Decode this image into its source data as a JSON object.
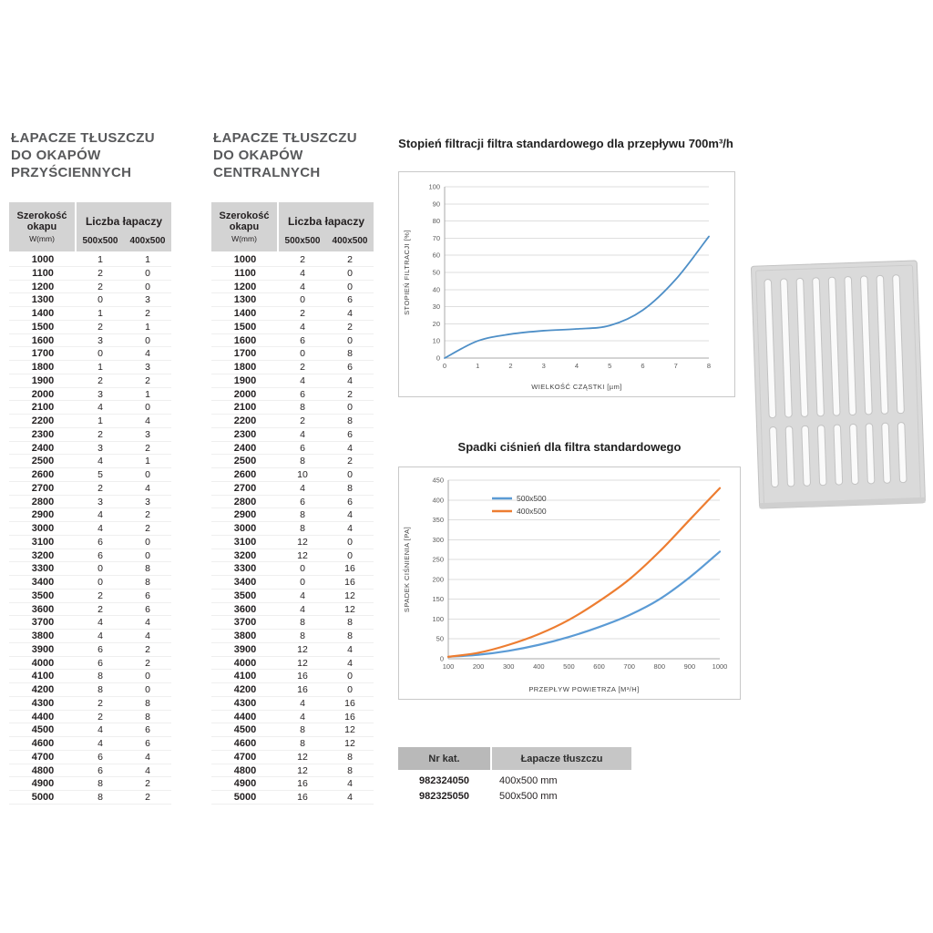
{
  "tables": [
    {
      "title_lines": [
        "ŁAPACZE TŁUSZCZU",
        "DO OKAPÓW",
        "PRZYŚCIENNYCH"
      ],
      "header": {
        "width_label": "Szerokość okapu",
        "width_unit": "W(mm)",
        "group_label": "Liczba łapaczy",
        "columns": [
          "500x500",
          "400x500"
        ]
      },
      "rows": [
        [
          1000,
          1,
          1
        ],
        [
          1100,
          2,
          0
        ],
        [
          1200,
          2,
          0
        ],
        [
          1300,
          0,
          3
        ],
        [
          1400,
          1,
          2
        ],
        [
          1500,
          2,
          1
        ],
        [
          1600,
          3,
          0
        ],
        [
          1700,
          0,
          4
        ],
        [
          1800,
          1,
          3
        ],
        [
          1900,
          2,
          2
        ],
        [
          2000,
          3,
          1
        ],
        [
          2100,
          4,
          0
        ],
        [
          2200,
          1,
          4
        ],
        [
          2300,
          2,
          3
        ],
        [
          2400,
          3,
          2
        ],
        [
          2500,
          4,
          1
        ],
        [
          2600,
          5,
          0
        ],
        [
          2700,
          2,
          4
        ],
        [
          2800,
          3,
          3
        ],
        [
          2900,
          4,
          2
        ],
        [
          3000,
          4,
          2
        ],
        [
          3100,
          6,
          0
        ],
        [
          3200,
          6,
          0
        ],
        [
          3300,
          0,
          8
        ],
        [
          3400,
          0,
          8
        ],
        [
          3500,
          2,
          6
        ],
        [
          3600,
          2,
          6
        ],
        [
          3700,
          4,
          4
        ],
        [
          3800,
          4,
          4
        ],
        [
          3900,
          6,
          2
        ],
        [
          4000,
          6,
          2
        ],
        [
          4100,
          8,
          0
        ],
        [
          4200,
          8,
          0
        ],
        [
          4300,
          2,
          8
        ],
        [
          4400,
          2,
          8
        ],
        [
          4500,
          4,
          6
        ],
        [
          4600,
          4,
          6
        ],
        [
          4700,
          6,
          4
        ],
        [
          4800,
          6,
          4
        ],
        [
          4900,
          8,
          2
        ],
        [
          5000,
          8,
          2
        ]
      ]
    },
    {
      "title_lines": [
        "ŁAPACZE TŁUSZCZU",
        "DO OKAPÓW",
        "CENTRALNYCH"
      ],
      "header": {
        "width_label": "Szerokość okapu",
        "width_unit": "W(mm)",
        "group_label": "Liczba łapaczy",
        "columns": [
          "500x500",
          "400x500"
        ]
      },
      "rows": [
        [
          1000,
          2,
          2
        ],
        [
          1100,
          4,
          0
        ],
        [
          1200,
          4,
          0
        ],
        [
          1300,
          0,
          6
        ],
        [
          1400,
          2,
          4
        ],
        [
          1500,
          4,
          2
        ],
        [
          1600,
          6,
          0
        ],
        [
          1700,
          0,
          8
        ],
        [
          1800,
          2,
          6
        ],
        [
          1900,
          4,
          4
        ],
        [
          2000,
          6,
          2
        ],
        [
          2100,
          8,
          0
        ],
        [
          2200,
          2,
          8
        ],
        [
          2300,
          4,
          6
        ],
        [
          2400,
          6,
          4
        ],
        [
          2500,
          8,
          2
        ],
        [
          2600,
          10,
          0
        ],
        [
          2700,
          4,
          8
        ],
        [
          2800,
          6,
          6
        ],
        [
          2900,
          8,
          4
        ],
        [
          3000,
          8,
          4
        ],
        [
          3100,
          12,
          0
        ],
        [
          3200,
          12,
          0
        ],
        [
          3300,
          0,
          16
        ],
        [
          3400,
          0,
          16
        ],
        [
          3500,
          4,
          12
        ],
        [
          3600,
          4,
          12
        ],
        [
          3700,
          8,
          8
        ],
        [
          3800,
          8,
          8
        ],
        [
          3900,
          12,
          4
        ],
        [
          4000,
          12,
          4
        ],
        [
          4100,
          16,
          0
        ],
        [
          4200,
          16,
          0
        ],
        [
          4300,
          4,
          16
        ],
        [
          4400,
          4,
          16
        ],
        [
          4500,
          8,
          12
        ],
        [
          4600,
          8,
          12
        ],
        [
          4700,
          12,
          8
        ],
        [
          4800,
          12,
          8
        ],
        [
          4900,
          16,
          4
        ],
        [
          5000,
          16,
          4
        ]
      ]
    }
  ],
  "chart_data": [
    {
      "type": "line",
      "title": "Stopień filtracji filtra standardowego dla przepływu 700m³/h",
      "xlabel": "WIELKOŚĆ CZĄSTKI [µm]",
      "ylabel": "STOPIEŃ FILTRACJI [%]",
      "x": [
        0,
        1,
        2,
        3,
        4,
        5,
        6,
        7,
        8
      ],
      "xticks": [
        0,
        1,
        2,
        3,
        4,
        5,
        6,
        7,
        8
      ],
      "yticks": [
        0,
        10,
        20,
        30,
        40,
        50,
        60,
        70,
        80,
        90,
        100
      ],
      "ylim": [
        0,
        100
      ],
      "grid": "horizontal",
      "legend": false,
      "series": [
        {
          "name": "stopień filtracji",
          "color": "#4e8fc7",
          "values": [
            0,
            10,
            14,
            16,
            17,
            19,
            28,
            46,
            71
          ]
        }
      ]
    },
    {
      "type": "line",
      "title": "Spadki ciśnień dla filtra standardowego",
      "xlabel": "PRZEPŁYW POWIETRZA [M³/H]",
      "ylabel": "SPADEK CIŚNIENIA [PA]",
      "x": [
        100,
        200,
        300,
        400,
        500,
        600,
        700,
        800,
        900,
        1000
      ],
      "xticks": [
        100,
        200,
        300,
        400,
        500,
        600,
        700,
        800,
        900,
        1000
      ],
      "yticks": [
        0,
        50,
        100,
        150,
        200,
        250,
        300,
        350,
        400,
        450
      ],
      "ylim": [
        0,
        450
      ],
      "grid": "horizontal",
      "legend": true,
      "legend_position": "top-left-inside",
      "series": [
        {
          "name": "500x500",
          "color": "#5b9bd5",
          "values": [
            5,
            10,
            20,
            35,
            55,
            80,
            110,
            150,
            205,
            270
          ]
        },
        {
          "name": "400x500",
          "color": "#ed7d31",
          "values": [
            5,
            15,
            35,
            62,
            98,
            145,
            200,
            270,
            350,
            430
          ]
        }
      ]
    }
  ],
  "catalog_table": {
    "headers": [
      "Nr kat.",
      "Łapacze tłuszczu"
    ],
    "rows": [
      [
        "982324050",
        "400x500 mm"
      ],
      [
        "982325050",
        "500x500 mm"
      ]
    ]
  },
  "product_image_name": "grease-filter-photo"
}
